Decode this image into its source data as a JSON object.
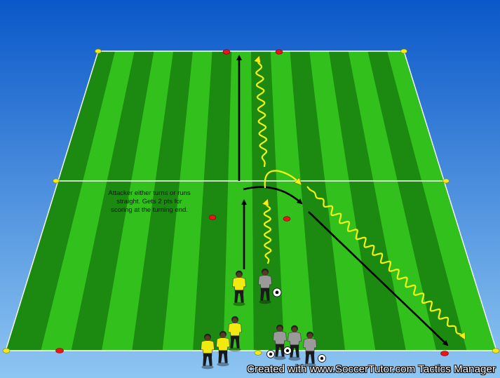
{
  "colors": {
    "sky_top": "#0a58c9",
    "sky_bottom": "#8ec6f2",
    "grass_dark": "#1c8a10",
    "grass_light": "#32c11c",
    "line": "#ffffff",
    "cone_red": "#e8161b",
    "cone_yellow": "#f4ea1a",
    "run_arrow": "#000000",
    "dribble_arrow": "#f2f213",
    "attacker_kit": "#f1ea10",
    "defender_kit": "#9a9a9a"
  },
  "annotation": {
    "text": "Attacker either turns or runs straight. Gets 2 pts for scoring at the turning end."
  },
  "watermark": {
    "text": "Created with www.SoccerTutor.com Tactics Manager"
  },
  "icons": {
    "cone": "cone-icon",
    "ball": "soccer-ball-icon",
    "player": "player-icon"
  }
}
